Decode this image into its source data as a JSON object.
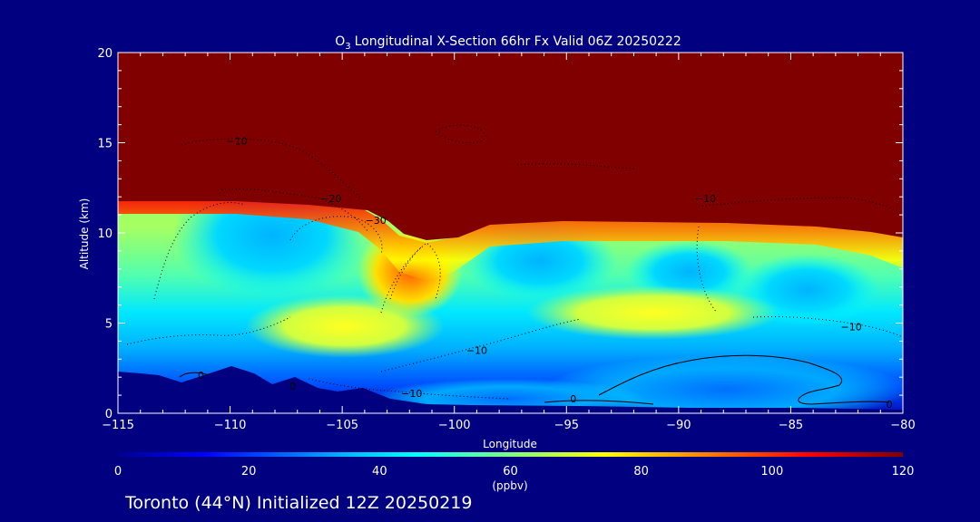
{
  "chart_data": {
    "type": "heatmap",
    "title_main": "Longitudinal X-Section 66hr  Fx Valid 06Z 20250222",
    "title_species": "O",
    "title_subscript": "3",
    "xlabel": "Longitude",
    "ylabel": "Altitude (km)",
    "xlim": [
      -115,
      -80
    ],
    "ylim": [
      0,
      20
    ],
    "x_ticks": [
      -115,
      -110,
      -105,
      -100,
      -95,
      -90,
      -85,
      -80
    ],
    "x_tick_labels": [
      "−115",
      "−110",
      "−105",
      "−100",
      "−95",
      "−90",
      "−85",
      "−80"
    ],
    "y_ticks": [
      0,
      5,
      10,
      15,
      20
    ],
    "y_tick_labels": [
      "0",
      "5",
      "10",
      "15",
      "20"
    ],
    "colorbar": {
      "min": 0,
      "max": 120,
      "ticks": [
        0,
        20,
        40,
        60,
        80,
        100,
        120
      ],
      "tick_labels": [
        "0",
        "20",
        "40",
        "60",
        "80",
        "100",
        "120"
      ],
      "unit_label": "(ppbv)",
      "colormap": [
        "#00008f",
        "#0000ff",
        "#00ffff",
        "#7fff7f",
        "#ffff00",
        "#ff7f00",
        "#ff0000",
        "#800000"
      ]
    },
    "tropopause_height_km": [
      [
        -115,
        11.8
      ],
      [
        -112,
        11.8
      ],
      [
        -109,
        11.7
      ],
      [
        -106,
        11.5
      ],
      [
        -104,
        11.1
      ],
      [
        -103,
        10.2
      ],
      [
        -102,
        9.8
      ],
      [
        -101,
        9.7
      ],
      [
        -100,
        10.2
      ],
      [
        -99,
        10.6
      ],
      [
        -97,
        10.7
      ],
      [
        -90,
        10.6
      ],
      [
        -85,
        10.5
      ],
      [
        -82,
        10.1
      ],
      [
        -80,
        9.8
      ]
    ],
    "stratosphere_value_ppbv": 120,
    "ozone_features": [
      {
        "lon": -103,
        "alt": 7.0,
        "value_ppbv": 85
      },
      {
        "lon": -101.5,
        "alt": 8.5,
        "value_ppbv": 95
      },
      {
        "lon": -96.5,
        "alt": 8.6,
        "value_ppbv": 35
      },
      {
        "lon": -108,
        "alt": 9.5,
        "value_ppbv": 38
      },
      {
        "lon": -90,
        "alt": 3.0,
        "value_ppbv": 40
      },
      {
        "lon": -105,
        "alt": 4.5,
        "value_ppbv": 62
      }
    ],
    "terrain_km": [
      [
        -115,
        2.3
      ],
      [
        -114,
        2.2
      ],
      [
        -113,
        2.1
      ],
      [
        -112,
        1.7
      ],
      [
        -111,
        2.1
      ],
      [
        -110,
        2.5
      ],
      [
        -109,
        2.2
      ],
      [
        -108,
        1.7
      ],
      [
        -107,
        2.0
      ],
      [
        -106,
        1.5
      ],
      [
        -105,
        1.2
      ],
      [
        -104,
        1.4
      ],
      [
        -103,
        1.0
      ],
      [
        -102,
        0.6
      ],
      [
        -100,
        0.4
      ],
      [
        -95,
        0.4
      ],
      [
        -90,
        0.3
      ],
      [
        -85,
        0.3
      ],
      [
        -80,
        0.2
      ]
    ],
    "contour_labels": [
      {
        "text": "−10",
        "lon": -109.7,
        "alt": 15.1
      },
      {
        "text": "−20",
        "lon": -105.5,
        "alt": 11.9
      },
      {
        "text": "−30",
        "lon": -103.5,
        "alt": 10.7
      },
      {
        "text": "−10",
        "lon": -88.8,
        "alt": 11.9
      },
      {
        "text": "−10",
        "lon": -99.0,
        "alt": 3.5
      },
      {
        "text": "−10",
        "lon": -82.3,
        "alt": 4.8
      },
      {
        "text": "−10",
        "lon": -101.9,
        "alt": 1.1
      },
      {
        "text": "0",
        "lon": -111.3,
        "alt": 2.1
      },
      {
        "text": "0",
        "lon": -107.2,
        "alt": 1.5
      },
      {
        "text": "0",
        "lon": -94.7,
        "alt": 0.8
      },
      {
        "text": "0",
        "lon": -80.6,
        "alt": 0.5
      }
    ],
    "location_label": "Toronto (44°N) Initialized 12Z 20250219"
  }
}
